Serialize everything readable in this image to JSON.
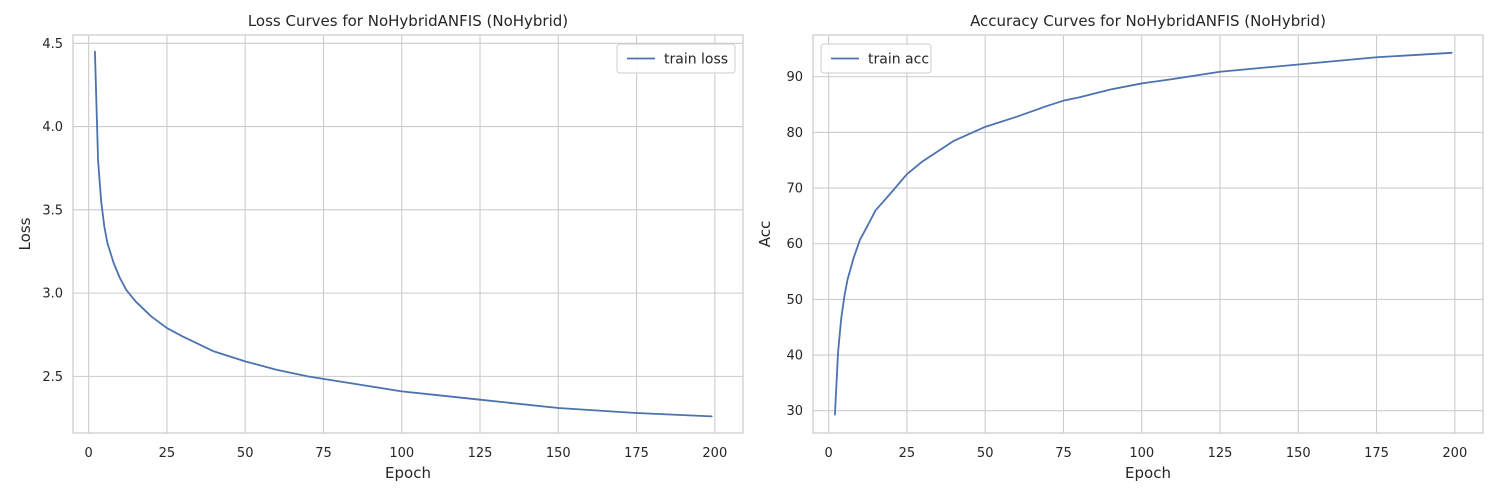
{
  "chart_data": [
    {
      "type": "line",
      "title": "Loss Curves for NoHybridANFIS (NoHybrid)",
      "xlabel": "Epoch",
      "ylabel": "Loss",
      "xlim": [
        -5,
        209
      ],
      "ylim": [
        2.16,
        4.55
      ],
      "xticks": [
        0,
        25,
        50,
        75,
        100,
        125,
        150,
        175,
        200
      ],
      "yticks": [
        2.5,
        3.0,
        3.5,
        4.0,
        4.5
      ],
      "ytick_labels": [
        "2.5",
        "3.0",
        "3.5",
        "4.0",
        "4.5"
      ],
      "grid": true,
      "legend_position": "upper right",
      "series": [
        {
          "name": "train loss",
          "color": "#4c72b0",
          "x": [
            2,
            3,
            4,
            5,
            6,
            8,
            10,
            12,
            15,
            20,
            25,
            30,
            40,
            50,
            60,
            70,
            80,
            90,
            100,
            110,
            125,
            150,
            175,
            199
          ],
          "y": [
            4.45,
            3.8,
            3.55,
            3.4,
            3.3,
            3.18,
            3.09,
            3.02,
            2.95,
            2.86,
            2.79,
            2.74,
            2.65,
            2.59,
            2.54,
            2.5,
            2.47,
            2.44,
            2.41,
            2.39,
            2.36,
            2.31,
            2.28,
            2.26
          ]
        }
      ]
    },
    {
      "type": "line",
      "title": "Accuracy Curves for NoHybridANFIS (NoHybrid)",
      "xlabel": "Epoch",
      "ylabel": "Acc",
      "xlim": [
        -5,
        209
      ],
      "ylim": [
        26,
        97.5
      ],
      "xticks": [
        0,
        25,
        50,
        75,
        100,
        125,
        150,
        175,
        200
      ],
      "yticks": [
        30,
        40,
        50,
        60,
        70,
        80,
        90
      ],
      "ytick_labels": [
        "30",
        "40",
        "50",
        "60",
        "70",
        "80",
        "90"
      ],
      "grid": true,
      "legend_position": "upper left",
      "series": [
        {
          "name": "train acc",
          "color": "#4c72b0",
          "x": [
            2,
            3,
            4,
            5,
            6,
            8,
            10,
            12,
            15,
            20,
            25,
            30,
            40,
            50,
            60,
            70,
            75,
            80,
            90,
            100,
            110,
            125,
            150,
            175,
            199
          ],
          "y": [
            29.3,
            40.5,
            46.5,
            50.5,
            53.5,
            57.5,
            60.7,
            62.8,
            66.0,
            69.2,
            72.5,
            74.8,
            78.5,
            81.0,
            82.8,
            84.8,
            85.7,
            86.3,
            87.7,
            88.8,
            89.6,
            90.9,
            92.2,
            93.5,
            94.3
          ]
        }
      ]
    }
  ]
}
